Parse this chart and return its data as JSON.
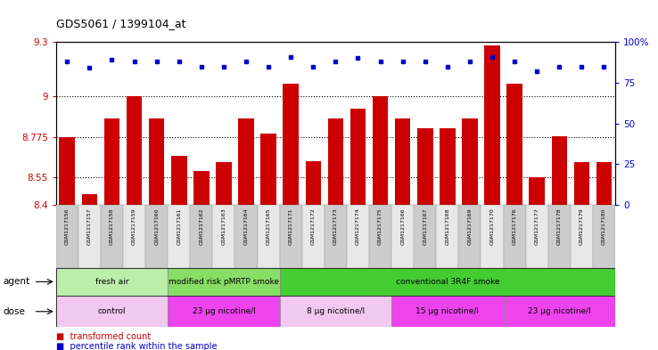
{
  "title": "GDS5061 / 1399104_at",
  "samples": [
    "GSM1217156",
    "GSM1217157",
    "GSM1217158",
    "GSM1217159",
    "GSM1217160",
    "GSM1217161",
    "GSM1217162",
    "GSM1217163",
    "GSM1217164",
    "GSM1217165",
    "GSM1217171",
    "GSM1217172",
    "GSM1217173",
    "GSM1217174",
    "GSM1217175",
    "GSM1217166",
    "GSM1217167",
    "GSM1217168",
    "GSM1217169",
    "GSM1217170",
    "GSM1217176",
    "GSM1217177",
    "GSM1217178",
    "GSM1217179",
    "GSM1217180"
  ],
  "bar_values": [
    8.775,
    8.46,
    8.875,
    9.0,
    8.875,
    8.67,
    8.585,
    8.635,
    8.875,
    8.795,
    9.07,
    8.64,
    8.875,
    8.93,
    9.0,
    8.875,
    8.825,
    8.825,
    8.875,
    9.28,
    9.07,
    8.55,
    8.78,
    8.635,
    8.635
  ],
  "percentile_values": [
    88,
    84,
    89,
    88,
    88,
    88,
    85,
    85,
    88,
    85,
    91,
    85,
    88,
    90,
    88,
    88,
    88,
    85,
    88,
    91,
    88,
    82,
    85,
    85,
    85
  ],
  "ylim_left": [
    8.4,
    9.3
  ],
  "ylim_right": [
    0,
    100
  ],
  "yticks_left": [
    8.4,
    8.55,
    8.775,
    9.0,
    9.3
  ],
  "ytick_labels_left": [
    "8.4",
    "8.55",
    "8.775",
    "9",
    "9.3"
  ],
  "yticks_right": [
    0,
    25,
    50,
    75,
    100
  ],
  "ytick_labels_right": [
    "0",
    "25",
    "50",
    "75",
    "100%"
  ],
  "hlines": [
    9.0,
    8.775,
    8.55
  ],
  "bar_color": "#cc0000",
  "dot_color": "#0000cc",
  "agent_groups": [
    {
      "label": "fresh air",
      "start": 0,
      "end": 5,
      "color": "#bbeeaa"
    },
    {
      "label": "modified risk pMRTP smoke",
      "start": 5,
      "end": 10,
      "color": "#88dd66"
    },
    {
      "label": "conventional 3R4F smoke",
      "start": 10,
      "end": 25,
      "color": "#44cc33"
    }
  ],
  "dose_groups": [
    {
      "label": "control",
      "start": 0,
      "end": 5,
      "color": "#f0c8f0"
    },
    {
      "label": "23 μg nicotine/l",
      "start": 5,
      "end": 10,
      "color": "#ee44ee"
    },
    {
      "label": "8 μg nicotine/l",
      "start": 10,
      "end": 15,
      "color": "#f0c8f0"
    },
    {
      "label": "15 μg nicotine/l",
      "start": 15,
      "end": 20,
      "color": "#ee44ee"
    },
    {
      "label": "23 μg nicotine/l",
      "start": 20,
      "end": 25,
      "color": "#ee44ee"
    }
  ],
  "legend_items": [
    {
      "label": "transformed count",
      "color": "#cc0000"
    },
    {
      "label": "percentile rank within the sample",
      "color": "#0000cc"
    }
  ],
  "agent_label": "agent",
  "dose_label": "dose",
  "bg_color": "#ffffff",
  "tick_label_color_left": "#cc0000",
  "tick_label_color_right": "#0000cc",
  "xticklabel_bg_colors": [
    "#cccccc",
    "#e8e8e8"
  ]
}
